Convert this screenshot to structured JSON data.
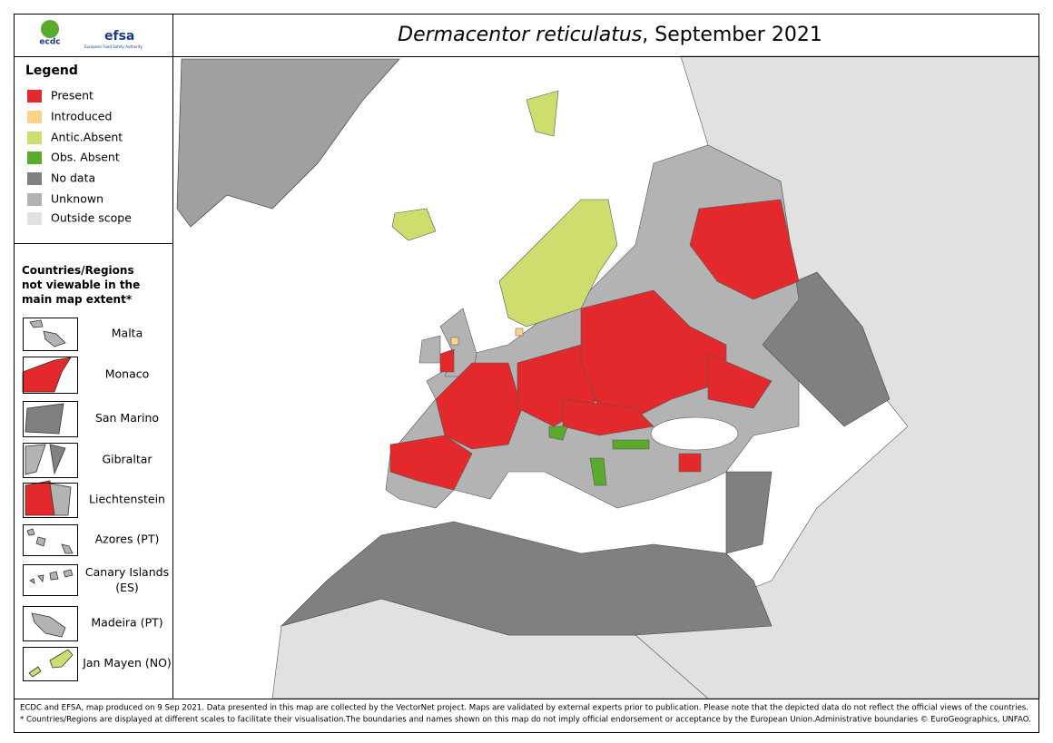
{
  "header": {
    "logo_ecdc": "ecdc",
    "logo_efsa": "efsa",
    "logo_efsa_sub": "European Food Safety Authority",
    "title_species": "Dermacentor reticulatus",
    "title_rest": ", September 2021"
  },
  "legend": {
    "title": "Legend",
    "items": [
      {
        "label": "Present",
        "color": "#e3292b"
      },
      {
        "label": "Introduced",
        "color": "#fdd38a"
      },
      {
        "label": "Antic.Absent",
        "color": "#cfdd6e"
      },
      {
        "label": "Obs. Absent",
        "color": "#5aaa2d"
      },
      {
        "label": "No data",
        "color": "#808080"
      },
      {
        "label": "Unknown",
        "color": "#b3b3b3"
      },
      {
        "label": "Outside scope",
        "color": "#e1e1e1"
      }
    ]
  },
  "insets": {
    "title": "Countries/Regions not viewable in the main map extent*",
    "items": [
      "Malta",
      "Monaco",
      "San Marino",
      "Gibraltar",
      "Liechtenstein",
      "Azores (PT)",
      "Canary Islands (ES)",
      "Madeira (PT)",
      "Jan Mayen (NO)"
    ]
  },
  "footer": {
    "line1": "ECDC and EFSA, map produced on 9 Sep 2021. Data presented in this map are collected by the VectorNet project. Maps are validated by external experts prior to publication. Please note that the depicted data do not reflect the official views of the countries.",
    "line2": "* Countries/Regions are displayed at different scales to facilitate their visualisation.The boundaries and names shown on this map do not imply official endorsement or acceptance by the European Union.Administrative boundaries © EuroGeographics, UNFAO."
  }
}
